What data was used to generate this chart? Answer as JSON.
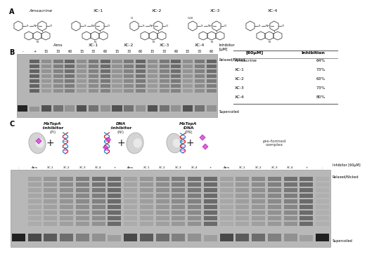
{
  "panel_labels": [
    "A",
    "B",
    "C"
  ],
  "compounds_A": [
    "Amsacrine",
    "XC-1",
    "XC-2",
    "XC-3",
    "XC-4"
  ],
  "inhibitor_header": "Inhibitor",
  "conc_header": "[μM]",
  "gel_B_lane_labels": [
    "-",
    "+",
    "15",
    "30",
    "60",
    "15",
    "30",
    "60",
    "15",
    "30",
    "60",
    "15",
    "30",
    "60",
    "15",
    "30",
    "60"
  ],
  "gel_B_compound_groups": [
    {
      "name": "Ams",
      "lanes": [
        2,
        3,
        4
      ]
    },
    {
      "name": "XC-1",
      "lanes": [
        5,
        6,
        7
      ]
    },
    {
      "name": "XC-2",
      "lanes": [
        8,
        9,
        10
      ]
    },
    {
      "name": "XC-3",
      "lanes": [
        11,
        12,
        13
      ]
    },
    {
      "name": "XC-4",
      "lanes": [
        14,
        15,
        16
      ]
    }
  ],
  "relaxed_nicked": "Relaxed/Nicked",
  "supercoiled": "Supercoiled",
  "table_header": [
    "[60μM]",
    "Inhibition"
  ],
  "table_data": [
    [
      "Amsacrine",
      "64%"
    ],
    [
      "XC-1",
      "73%"
    ],
    [
      "XC-2",
      "63%"
    ],
    [
      "XC-3",
      "73%"
    ],
    [
      "XC-4",
      "80%"
    ]
  ],
  "diagram_titles_italic": [
    "MsTopA",
    "DNA",
    "MsTopA"
  ],
  "diagram_titles_rest": [
    ":inhibitor",
    ":inhibitor",
    ":DNA"
  ],
  "diagram_subtitles": [
    "(PI)",
    "(NI)",
    "(PN)"
  ],
  "pre_formed": "pre-formed\ncomplex",
  "inhibitor_label": "Inhibitor [60μM]",
  "gel_C_lane_labels": [
    "-",
    "Ams",
    "XC-1",
    "XC-2",
    "XC-3",
    "XC-4",
    "+",
    "Ams",
    "XC-1",
    "XC-2",
    "XC-3",
    "XC-4",
    "+",
    "Ams",
    "XC-1",
    "XC-2",
    "XC-3",
    "XC-4",
    "+",
    "-"
  ],
  "gel_bg": "#c0c0c0",
  "band_dark": "#282828",
  "band_mid": "#484848",
  "band_light": "#686868"
}
